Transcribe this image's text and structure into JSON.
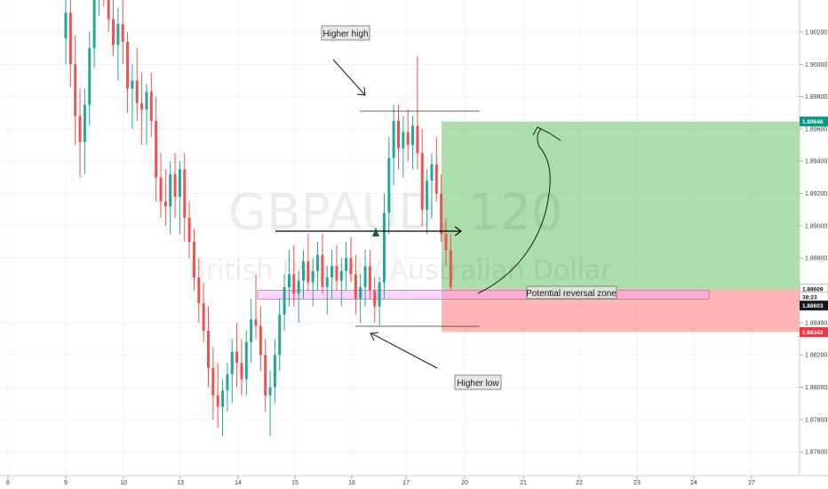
{
  "chart_data": {
    "type": "candlestick",
    "symbol": "GBPAUD, 120",
    "description": "British Pound / Australian Dollar",
    "x_tick_labels": [
      "8",
      "9",
      "10",
      "13",
      "14",
      "15",
      "16",
      "17",
      "20",
      "21",
      "22",
      "23",
      "24",
      "27"
    ],
    "y_tick_labels": [
      "1.90200",
      "1.90000",
      "1.89800",
      "1.89600",
      "1.89400",
      "1.89200",
      "1.89000",
      "1.88800",
      "1.88400",
      "1.88200",
      "1.88000",
      "1.87800",
      "1.87600"
    ],
    "ylim": [
      1.8748,
      1.9036
    ],
    "price_tags": [
      {
        "label": "1.89646",
        "value": 1.89646,
        "color": "#089981"
      },
      {
        "label": "1.88609",
        "value": 1.88609,
        "color": "#ffffff"
      },
      {
        "label": "38:23",
        "value": 1.88558,
        "color": "#ffffff"
      },
      {
        "label": "1.88603",
        "value": 1.88506,
        "color": "#131722"
      },
      {
        "label": "1.88342",
        "value": 1.88342,
        "color": "#f23645"
      }
    ],
    "position": {
      "entry": 1.88609,
      "target": 1.89646,
      "stop": 1.88342
    },
    "reversal_zone": {
      "low": 1.88545,
      "high": 1.886
    },
    "annotations": [
      "Higher high",
      "Higher low",
      "Potential reversal zone"
    ],
    "colors": {
      "up": "#26a69a",
      "down": "#ef5350",
      "profit": "#5bc05b",
      "loss": "#ff6b6b",
      "zone": "#ff9cff"
    },
    "candles": [
      [
        1.9016,
        1.906,
        1.9,
        1.9032
      ],
      [
        1.9032,
        1.9052,
        1.8986,
        1.9
      ],
      [
        1.9,
        1.9018,
        1.895,
        1.8968
      ],
      [
        1.8968,
        1.8985,
        1.893,
        1.8952
      ],
      [
        1.8952,
        1.8985,
        1.8932,
        1.8975
      ],
      [
        1.8975,
        1.902,
        1.8962,
        1.901
      ],
      [
        1.901,
        1.906,
        1.8998,
        1.9048
      ],
      [
        1.9048,
        1.907,
        1.903,
        1.906
      ],
      [
        1.906,
        1.907,
        1.9036,
        1.905
      ],
      [
        1.905,
        1.906,
        1.902,
        1.9028
      ],
      [
        1.9028,
        1.904,
        1.9005,
        1.9012
      ],
      [
        1.9012,
        1.9035,
        1.899,
        1.9025
      ],
      [
        1.9025,
        1.904,
        1.9,
        1.9014
      ],
      [
        1.9014,
        1.902,
        1.897,
        1.8985
      ],
      [
        1.8985,
        1.9,
        1.896,
        1.899
      ],
      [
        1.899,
        1.901,
        1.8965,
        1.8976
      ],
      [
        1.8976,
        1.8995,
        1.895,
        1.8972
      ],
      [
        1.8972,
        1.8988,
        1.895,
        1.8983
      ],
      [
        1.8983,
        1.8995,
        1.8955,
        1.8965
      ],
      [
        1.8965,
        1.898,
        1.8915,
        1.893
      ],
      [
        1.893,
        1.8945,
        1.8905,
        1.8915
      ],
      [
        1.8915,
        1.8935,
        1.89,
        1.8912
      ],
      [
        1.8912,
        1.894,
        1.8895,
        1.8932
      ],
      [
        1.8932,
        1.8945,
        1.8905,
        1.8918
      ],
      [
        1.8918,
        1.894,
        1.8895,
        1.8935
      ],
      [
        1.8935,
        1.8945,
        1.889,
        1.8905
      ],
      [
        1.8905,
        1.8915,
        1.888,
        1.889
      ],
      [
        1.889,
        1.8898,
        1.886,
        1.8868
      ],
      [
        1.8868,
        1.888,
        1.884,
        1.8852
      ],
      [
        1.8852,
        1.8865,
        1.8828,
        1.8835
      ],
      [
        1.8835,
        1.885,
        1.88,
        1.8812
      ],
      [
        1.8812,
        1.8825,
        1.878,
        1.8795
      ],
      [
        1.8795,
        1.8815,
        1.8775,
        1.8788
      ],
      [
        1.8788,
        1.8805,
        1.877,
        1.8798
      ],
      [
        1.8798,
        1.8815,
        1.8785,
        1.8808
      ],
      [
        1.8808,
        1.883,
        1.879,
        1.8822
      ],
      [
        1.8822,
        1.884,
        1.88,
        1.8815
      ],
      [
        1.8815,
        1.883,
        1.8795,
        1.8805
      ],
      [
        1.8805,
        1.8835,
        1.8795,
        1.8828
      ],
      [
        1.8828,
        1.8855,
        1.8815,
        1.8842
      ],
      [
        1.8842,
        1.887,
        1.883,
        1.8838
      ],
      [
        1.8838,
        1.885,
        1.881,
        1.882
      ],
      [
        1.882,
        1.883,
        1.8785,
        1.8795
      ],
      [
        1.8795,
        1.881,
        1.877,
        1.88
      ],
      [
        1.88,
        1.883,
        1.879,
        1.882
      ],
      [
        1.882,
        1.8855,
        1.881,
        1.8845
      ],
      [
        1.8845,
        1.887,
        1.8835,
        1.8862
      ],
      [
        1.8862,
        1.8885,
        1.885,
        1.887
      ],
      [
        1.887,
        1.8888,
        1.885,
        1.8858
      ],
      [
        1.8858,
        1.8872,
        1.884,
        1.8866
      ],
      [
        1.8866,
        1.8885,
        1.8855,
        1.8878
      ],
      [
        1.8878,
        1.8895,
        1.886,
        1.8865
      ],
      [
        1.8865,
        1.888,
        1.885,
        1.8872
      ],
      [
        1.8872,
        1.889,
        1.886,
        1.8882
      ],
      [
        1.8882,
        1.8895,
        1.8858,
        1.8862
      ],
      [
        1.8862,
        1.8875,
        1.8845,
        1.8868
      ],
      [
        1.8868,
        1.8885,
        1.8855,
        1.8875
      ],
      [
        1.8875,
        1.8888,
        1.886,
        1.8866
      ],
      [
        1.8866,
        1.888,
        1.885,
        1.8872
      ],
      [
        1.8872,
        1.889,
        1.886,
        1.888
      ],
      [
        1.888,
        1.8893,
        1.8865,
        1.887
      ],
      [
        1.887,
        1.8882,
        1.8845,
        1.8855
      ],
      [
        1.8855,
        1.887,
        1.884,
        1.8862
      ],
      [
        1.8862,
        1.8885,
        1.885,
        1.8875
      ],
      [
        1.8875,
        1.8885,
        1.8855,
        1.886
      ],
      [
        1.886,
        1.8868,
        1.884,
        1.885
      ],
      [
        1.885,
        1.8868,
        1.8838,
        1.8865
      ],
      [
        1.8865,
        1.892,
        1.8855,
        1.8908
      ],
      [
        1.8908,
        1.8955,
        1.8895,
        1.8942
      ],
      [
        1.8942,
        1.8975,
        1.8925,
        1.8965
      ],
      [
        1.8965,
        1.8975,
        1.8935,
        1.8948
      ],
      [
        1.8948,
        1.8968,
        1.893,
        1.8958
      ],
      [
        1.8958,
        1.8972,
        1.894,
        1.895
      ],
      [
        1.895,
        1.8968,
        1.8935,
        1.8962
      ],
      [
        1.8962,
        1.9005,
        1.8935,
        1.8945
      ],
      [
        1.8945,
        1.896,
        1.89,
        1.891
      ],
      [
        1.891,
        1.8935,
        1.8895,
        1.8928
      ],
      [
        1.8928,
        1.8945,
        1.8905,
        1.8938
      ],
      [
        1.8938,
        1.8955,
        1.8915,
        1.892
      ],
      [
        1.892,
        1.8932,
        1.889,
        1.8895
      ],
      [
        1.8895,
        1.8905,
        1.8875,
        1.8885
      ],
      [
        1.8885,
        1.8895,
        1.886,
        1.8862
      ]
    ]
  }
}
